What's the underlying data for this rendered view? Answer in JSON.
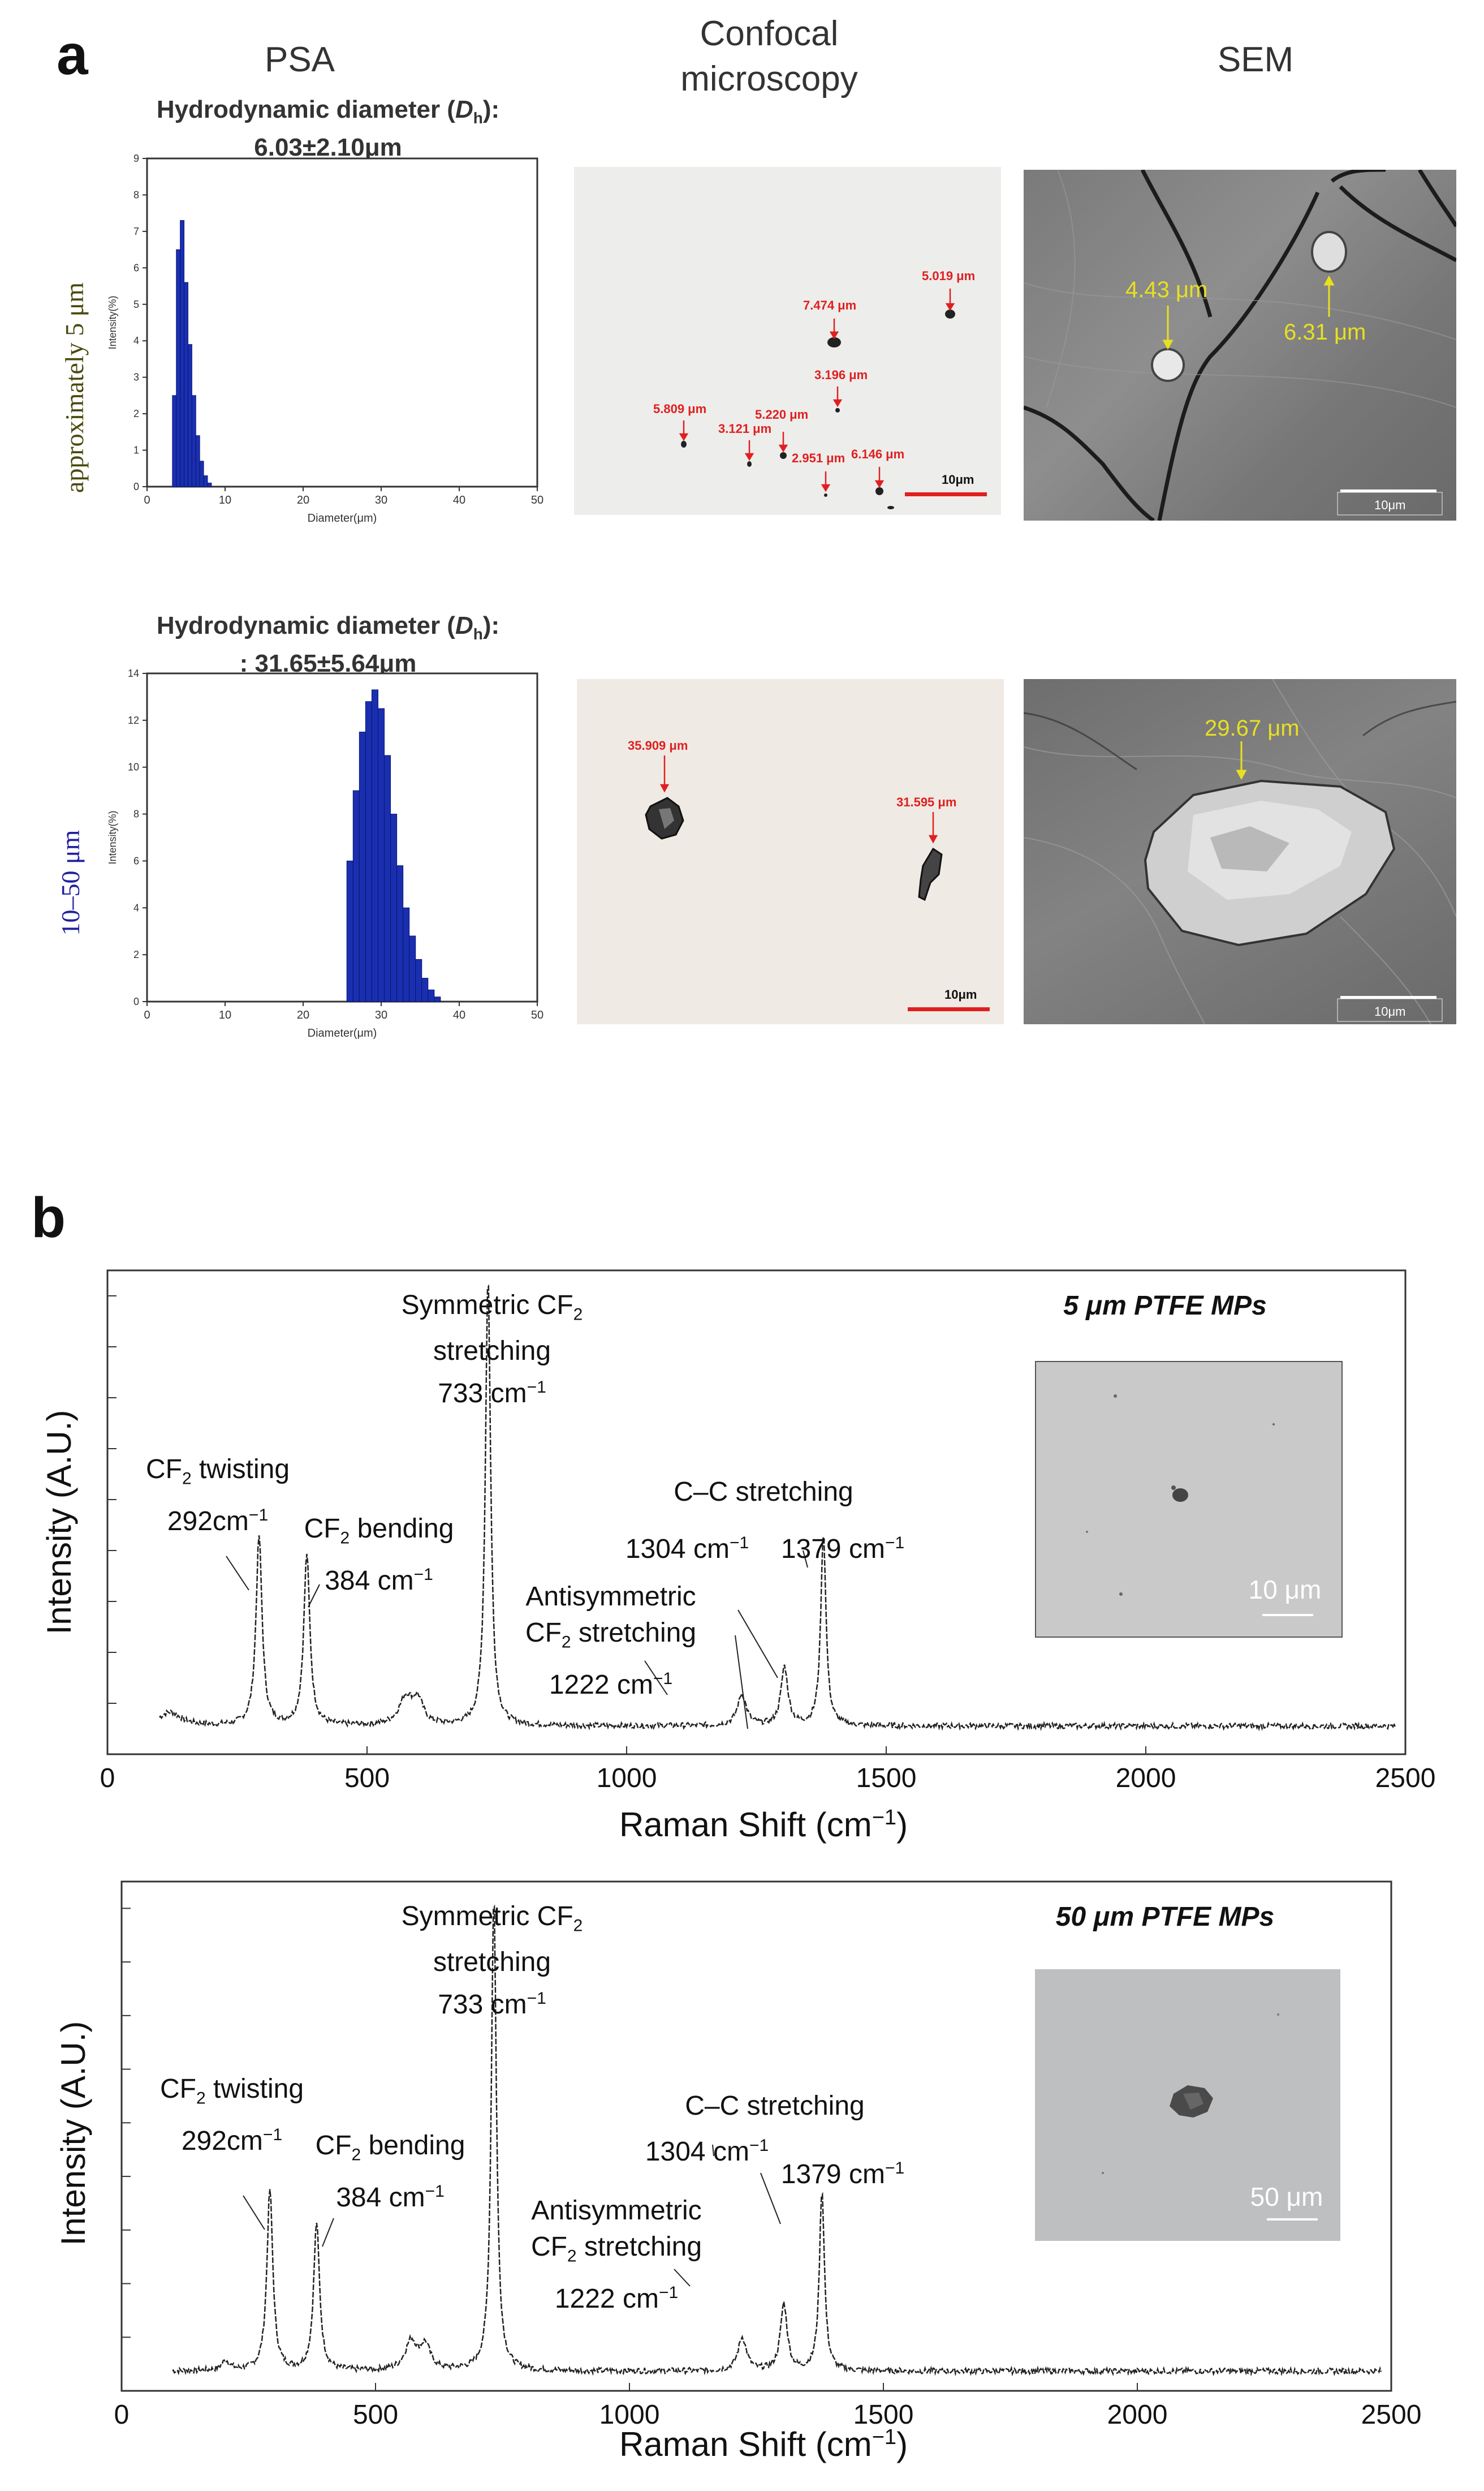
{
  "panel_a": {
    "letter": "a",
    "col_titles": [
      "PSA",
      "Confocal\nmicroscopy",
      "SEM"
    ],
    "rows": [
      {
        "side_label": "approximately 5 μm",
        "psa_title_1": "Hydrodynamic diameter (",
        "psa_title_italic": "D",
        "psa_title_sub": "h",
        "psa_title_2": "):",
        "psa_value": "6.03±2.10μm",
        "psa_ylabel": "Intensity(%)",
        "psa_xlabel": "Diameter(μm)",
        "confocal_labels": [
          "5.019 μm",
          "7.474 μm",
          "3.196 μm",
          "5.809 μm",
          "3.121 μm",
          "5.220 μm",
          "6.146 μm",
          "2.951 μm"
        ],
        "confocal_scale": "10μm",
        "sem_labels": [
          "4.43 μm",
          "6.31 μm"
        ],
        "sem_scale": "10μm"
      },
      {
        "side_label": "10–50 μm",
        "psa_title_1": "Hydrodynamic diameter (",
        "psa_title_italic": "D",
        "psa_title_sub": "h",
        "psa_title_2": "):",
        "psa_value": ": 31.65±5.64μm",
        "psa_ylabel": "Intensity(%)",
        "psa_xlabel": "Diameter(μm)",
        "confocal_labels": [
          "35.909 μm",
          "31.595 μm"
        ],
        "confocal_scale": "10μm",
        "sem_labels": [
          "29.67 μm"
        ],
        "sem_scale": "10μm"
      }
    ]
  },
  "panel_b": {
    "letter": "b",
    "spectra": [
      {
        "inset_title": "5 μm PTFE MPs",
        "inset_scale": "10 μm",
        "annotations": {
          "sym_1": "Symmetric CF",
          "sym_2": "stretching",
          "sym_3": "733 cm",
          "twist_1": "CF",
          "twist_2": "twisting",
          "twist_3": "292cm",
          "bend_1": "CF",
          "bend_2": "bending",
          "bend_3": "384 cm",
          "cc_1": "C–C stretching",
          "cc_2": "1304 cm",
          "cc_3": "1379 cm",
          "anti_1": "Antisymmetric",
          "anti_2": "CF",
          "anti_3": "stretching",
          "anti_4": "1222 cm"
        }
      },
      {
        "inset_title": "50 μm PTFE MPs",
        "inset_scale": "50 μm",
        "annotations": {
          "sym_1": "Symmetric CF",
          "sym_2": "stretching",
          "sym_3": "733 cm",
          "twist_1": "CF",
          "twist_2": "twisting",
          "twist_3": "292cm",
          "bend_1": "CF",
          "bend_2": "bending",
          "bend_3": "384 cm",
          "cc_1": "C–C stretching",
          "cc_2": "1304 cm",
          "cc_3": "1379 cm",
          "anti_1": "Antisymmetric",
          "anti_2": "CF",
          "anti_3": "stretching",
          "anti_4": "1222 cm"
        }
      }
    ],
    "ylabel": "Intensity (A.U.)",
    "xlabel_1": "Raman Shift (cm",
    "xlabel_sup": "−1",
    "xlabel_2": ")",
    "sup_minus1": "−1",
    "sub_2": "2"
  },
  "chart_data": [
    {
      "type": "bar",
      "xlim": [
        0,
        50
      ],
      "ylim": [
        0,
        9
      ],
      "x_ticks": [
        0,
        10,
        20,
        30,
        40,
        50
      ],
      "y_ticks": [
        0,
        1,
        2,
        3,
        4,
        5,
        6,
        7,
        8,
        9
      ],
      "xlabel": "Diameter(μm)",
      "ylabel": "Intensity(%)",
      "bar_width": 0.5,
      "x": [
        3.5,
        4.0,
        4.5,
        5.0,
        5.5,
        6.0,
        6.5,
        7.0,
        7.5,
        8.0
      ],
      "values": [
        2.5,
        6.5,
        7.3,
        5.6,
        3.9,
        2.5,
        1.4,
        0.7,
        0.3,
        0.1
      ],
      "color": "#1a2fb0"
    },
    {
      "type": "bar",
      "xlim": [
        0,
        50
      ],
      "ylim": [
        0,
        14
      ],
      "x_ticks": [
        0,
        10,
        20,
        30,
        40,
        50
      ],
      "y_ticks": [
        0,
        2,
        4,
        6,
        8,
        10,
        12,
        14
      ],
      "xlabel": "Diameter(μm)",
      "ylabel": "Intensity(%)",
      "bar_width": 0.8,
      "x": [
        26,
        26.8,
        27.6,
        28.4,
        29.2,
        30.0,
        30.8,
        31.6,
        32.4,
        33.2,
        34.0,
        34.8,
        35.6,
        36.4,
        37.2
      ],
      "values": [
        6.0,
        9.0,
        11.5,
        12.8,
        13.3,
        12.5,
        10.5,
        8.0,
        5.8,
        4.0,
        2.8,
        1.8,
        1.0,
        0.5,
        0.2
      ],
      "color": "#1a2fb0"
    },
    {
      "type": "line",
      "xlim": [
        0,
        2500
      ],
      "x_ticks": [
        0,
        500,
        1000,
        1500,
        2000,
        2500
      ],
      "xlabel": "Raman Shift (cm−1)",
      "ylabel": "Intensity (A.U.)",
      "baseline": 0.04,
      "peaks": [
        {
          "x": 120,
          "h": 0.03,
          "w": 25
        },
        {
          "x": 292,
          "h": 0.42,
          "w": 7
        },
        {
          "x": 384,
          "h": 0.38,
          "w": 7
        },
        {
          "x": 575,
          "h": 0.06,
          "w": 16
        },
        {
          "x": 598,
          "h": 0.05,
          "w": 12
        },
        {
          "x": 733,
          "h": 1.0,
          "w": 6
        },
        {
          "x": 1222,
          "h": 0.07,
          "w": 10
        },
        {
          "x": 1304,
          "h": 0.13,
          "w": 8
        },
        {
          "x": 1379,
          "h": 0.43,
          "w": 6
        }
      ]
    },
    {
      "type": "line",
      "xlim": [
        0,
        2500
      ],
      "x_ticks": [
        0,
        500,
        1000,
        1500,
        2000,
        2500
      ],
      "xlabel": "Raman Shift (cm−1)",
      "ylabel": "Intensity (A.U.)",
      "baseline": 0.02,
      "peaks": [
        {
          "x": 205,
          "h": 0.02,
          "w": 10
        },
        {
          "x": 292,
          "h": 0.38,
          "w": 7
        },
        {
          "x": 384,
          "h": 0.31,
          "w": 7
        },
        {
          "x": 570,
          "h": 0.06,
          "w": 14
        },
        {
          "x": 598,
          "h": 0.05,
          "w": 12
        },
        {
          "x": 733,
          "h": 1.0,
          "w": 6
        },
        {
          "x": 1222,
          "h": 0.07,
          "w": 10
        },
        {
          "x": 1304,
          "h": 0.14,
          "w": 8
        },
        {
          "x": 1379,
          "h": 0.38,
          "w": 6
        }
      ]
    }
  ]
}
